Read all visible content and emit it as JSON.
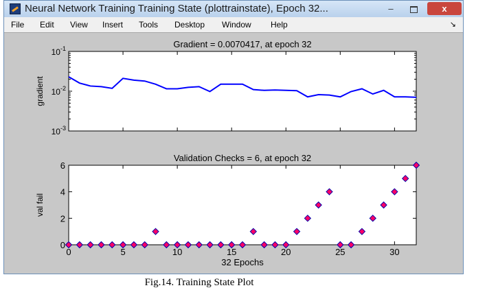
{
  "window": {
    "title": "Neural Network Training Training State (plottrainstate), Epoch 32...",
    "minimize_label": "–",
    "close_label": "x"
  },
  "menu": [
    "File",
    "Edit",
    "View",
    "Insert",
    "Tools",
    "Desktop",
    "Window",
    "Help"
  ],
  "figure": {
    "caption": "Fig.14. Training State Plot"
  },
  "chart_data": [
    {
      "type": "line",
      "title": "Gradient = 0.0070417, at epoch 32",
      "xlabel": "",
      "ylabel": "gradient",
      "yscale": "log",
      "xlim": [
        0,
        32
      ],
      "ylim": [
        0.001,
        0.1
      ],
      "yticks": [
        {
          "value": 0.1,
          "base": "10",
          "exp": "-1"
        },
        {
          "value": 0.01,
          "base": "10",
          "exp": "-2"
        },
        {
          "value": 0.001,
          "base": "10",
          "exp": "-3"
        }
      ],
      "color": "#0000ff",
      "x": [
        0,
        1,
        2,
        3,
        4,
        5,
        6,
        7,
        8,
        9,
        10,
        11,
        12,
        13,
        14,
        15,
        16,
        17,
        18,
        19,
        20,
        21,
        22,
        23,
        24,
        25,
        26,
        27,
        28,
        29,
        30,
        31,
        32
      ],
      "y": [
        0.023,
        0.016,
        0.0135,
        0.013,
        0.0118,
        0.021,
        0.019,
        0.018,
        0.015,
        0.0115,
        0.0115,
        0.0125,
        0.013,
        0.0098,
        0.015,
        0.015,
        0.015,
        0.011,
        0.0105,
        0.0107,
        0.0105,
        0.0103,
        0.0072,
        0.0082,
        0.008,
        0.0072,
        0.0098,
        0.0115,
        0.0085,
        0.0105,
        0.0072,
        0.0072,
        0.0070417
      ]
    },
    {
      "type": "scatter",
      "title": "Validation Checks = 6, at epoch 32",
      "xlabel": "32 Epochs",
      "ylabel": "val fail",
      "xlim": [
        0,
        32
      ],
      "ylim": [
        0,
        6
      ],
      "xticks": [
        0,
        5,
        10,
        15,
        20,
        25,
        30
      ],
      "yticks": [
        0,
        2,
        4,
        6
      ],
      "marker_fill": "#ff0066",
      "marker_edge": "#0000aa",
      "x": [
        0,
        1,
        2,
        3,
        4,
        5,
        6,
        7,
        8,
        9,
        10,
        11,
        12,
        13,
        14,
        15,
        16,
        17,
        18,
        19,
        20,
        21,
        22,
        23,
        24,
        25,
        26,
        27,
        28,
        29,
        30,
        31,
        32
      ],
      "y": [
        0,
        0,
        0,
        0,
        0,
        0,
        0,
        0,
        1,
        0,
        0,
        0,
        0,
        0,
        0,
        0,
        0,
        1,
        0,
        0,
        0,
        1,
        2,
        3,
        4,
        0,
        0,
        1,
        2,
        3,
        4,
        5,
        6
      ]
    }
  ]
}
